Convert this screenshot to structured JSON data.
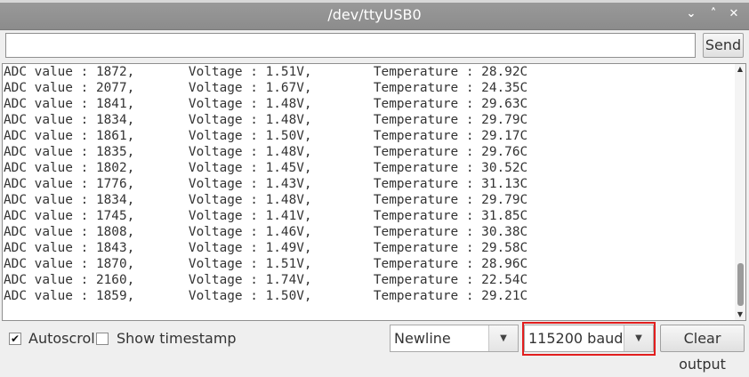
{
  "window": {
    "title": "/dev/ttyUSB0",
    "controls": {
      "minimize": "⌄",
      "maximize": "˄",
      "close": "✕"
    }
  },
  "send": {
    "input_value": "",
    "placeholder": "",
    "button_label": "Send"
  },
  "output": {
    "lines": [
      "ADC value : 1872,       Voltage : 1.51V,        Temperature : 28.92C",
      "ADC value : 2077,       Voltage : 1.67V,        Temperature : 24.35C",
      "ADC value : 1841,       Voltage : 1.48V,        Temperature : 29.63C",
      "ADC value : 1834,       Voltage : 1.48V,        Temperature : 29.79C",
      "ADC value : 1861,       Voltage : 1.50V,        Temperature : 29.17C",
      "ADC value : 1835,       Voltage : 1.48V,        Temperature : 29.76C",
      "ADC value : 1802,       Voltage : 1.45V,        Temperature : 30.52C",
      "ADC value : 1776,       Voltage : 1.43V,        Temperature : 31.13C",
      "ADC value : 1834,       Voltage : 1.48V,        Temperature : 29.79C",
      "ADC value : 1745,       Voltage : 1.41V,        Temperature : 31.85C",
      "ADC value : 1808,       Voltage : 1.46V,        Temperature : 30.38C",
      "ADC value : 1843,       Voltage : 1.49V,        Temperature : 29.58C",
      "ADC value : 1870,       Voltage : 1.51V,        Temperature : 28.96C",
      "ADC value : 2160,       Voltage : 1.74V,        Temperature : 22.54C",
      "ADC value : 1859,       Voltage : 1.50V,        Temperature : 29.21C"
    ]
  },
  "footer": {
    "autoscroll": {
      "label": "Autoscroll",
      "checked": true,
      "check_glyph": "✔"
    },
    "timestamp": {
      "label": "Show timestamp",
      "checked": false,
      "check_glyph": ""
    },
    "line_ending": {
      "value": "Newline",
      "arrow": "▼"
    },
    "baud": {
      "value": "115200 baud",
      "arrow": "▼"
    },
    "clear_label": "Clear output"
  },
  "colors": {
    "titlebar": "#8c8c8c",
    "highlight": "#e21e1e"
  }
}
